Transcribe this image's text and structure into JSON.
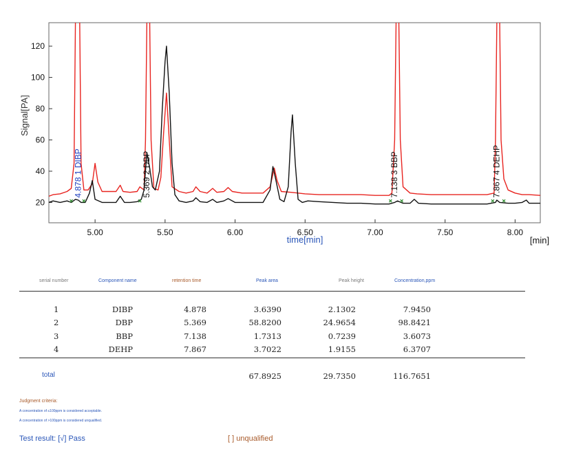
{
  "chart_data": {
    "type": "line",
    "xlabel": "time[min]",
    "ylabel": "Signal[PA]",
    "x_unit": "[min]",
    "xlim": [
      4.67,
      8.18
    ],
    "ylim": [
      7,
      135
    ],
    "x_ticks": [
      "5.00",
      "5.50",
      "6.00",
      "6.50",
      "7.00",
      "7.50",
      "8.00"
    ],
    "y_ticks": [
      "20",
      "40",
      "60",
      "80",
      "100",
      "120"
    ],
    "series": [
      {
        "color": "#e8231f",
        "points": [
          [
            4.67,
            24
          ],
          [
            4.7,
            25
          ],
          [
            4.75,
            25.5
          ],
          [
            4.8,
            27
          ],
          [
            4.83,
            29
          ],
          [
            4.85,
            45
          ],
          [
            4.86,
            136
          ],
          [
            4.89,
            136
          ],
          [
            4.9,
            45
          ],
          [
            4.92,
            28
          ],
          [
            4.95,
            28
          ],
          [
            4.98,
            32
          ],
          [
            5.0,
            45
          ],
          [
            5.02,
            33
          ],
          [
            5.05,
            27
          ],
          [
            5.1,
            27
          ],
          [
            5.15,
            27
          ],
          [
            5.18,
            31
          ],
          [
            5.2,
            27
          ],
          [
            5.25,
            26.5
          ],
          [
            5.3,
            27
          ],
          [
            5.32,
            30
          ],
          [
            5.35,
            28
          ],
          [
            5.36,
            60
          ],
          [
            5.37,
            136
          ],
          [
            5.39,
            136
          ],
          [
            5.4,
            60
          ],
          [
            5.42,
            29
          ],
          [
            5.45,
            28
          ],
          [
            5.47,
            36
          ],
          [
            5.49,
            65
          ],
          [
            5.51,
            90
          ],
          [
            5.53,
            60
          ],
          [
            5.55,
            30
          ],
          [
            5.6,
            27
          ],
          [
            5.65,
            26
          ],
          [
            5.7,
            27
          ],
          [
            5.72,
            30
          ],
          [
            5.75,
            27
          ],
          [
            5.8,
            26
          ],
          [
            5.84,
            29
          ],
          [
            5.87,
            26.5
          ],
          [
            5.92,
            27
          ],
          [
            5.95,
            29.5
          ],
          [
            5.98,
            27
          ],
          [
            6.05,
            26
          ],
          [
            6.15,
            26
          ],
          [
            6.2,
            26
          ],
          [
            6.25,
            30
          ],
          [
            6.28,
            42
          ],
          [
            6.3,
            34
          ],
          [
            6.33,
            27
          ],
          [
            6.4,
            26.5
          ],
          [
            6.45,
            26
          ],
          [
            6.5,
            25.5
          ],
          [
            6.6,
            25
          ],
          [
            6.7,
            25
          ],
          [
            6.8,
            25
          ],
          [
            6.9,
            25
          ],
          [
            7.0,
            24.5
          ],
          [
            7.1,
            24.5
          ],
          [
            7.12,
            26
          ],
          [
            7.14,
            60
          ],
          [
            7.15,
            136
          ],
          [
            7.17,
            136
          ],
          [
            7.18,
            60
          ],
          [
            7.2,
            30
          ],
          [
            7.25,
            26
          ],
          [
            7.3,
            25.5
          ],
          [
            7.4,
            25
          ],
          [
            7.5,
            25
          ],
          [
            7.6,
            25
          ],
          [
            7.7,
            25
          ],
          [
            7.8,
            25
          ],
          [
            7.85,
            26
          ],
          [
            7.86,
            60
          ],
          [
            7.87,
            136
          ],
          [
            7.89,
            136
          ],
          [
            7.9,
            60
          ],
          [
            7.92,
            35
          ],
          [
            7.95,
            28
          ],
          [
            8.0,
            26
          ],
          [
            8.05,
            25
          ],
          [
            8.1,
            25
          ],
          [
            8.18,
            24.5
          ]
        ]
      },
      {
        "color": "#111111",
        "points": [
          [
            4.67,
            20
          ],
          [
            4.7,
            21
          ],
          [
            4.75,
            20
          ],
          [
            4.8,
            21
          ],
          [
            4.83,
            20
          ],
          [
            4.86,
            22
          ],
          [
            4.88,
            21.5
          ],
          [
            4.9,
            20
          ],
          [
            4.93,
            20
          ],
          [
            4.96,
            26
          ],
          [
            4.98,
            34
          ],
          [
            5.0,
            22
          ],
          [
            5.05,
            20
          ],
          [
            5.1,
            20
          ],
          [
            5.15,
            20
          ],
          [
            5.18,
            24
          ],
          [
            5.21,
            20
          ],
          [
            5.25,
            20
          ],
          [
            5.3,
            20.5
          ],
          [
            5.33,
            22
          ],
          [
            5.35,
            28
          ],
          [
            5.37,
            52
          ],
          [
            5.39,
            42
          ],
          [
            5.41,
            30
          ],
          [
            5.43,
            28
          ],
          [
            5.46,
            40
          ],
          [
            5.48,
            80
          ],
          [
            5.5,
            110
          ],
          [
            5.51,
            120
          ],
          [
            5.53,
            90
          ],
          [
            5.55,
            45
          ],
          [
            5.57,
            25
          ],
          [
            5.6,
            21
          ],
          [
            5.65,
            20
          ],
          [
            5.7,
            21
          ],
          [
            5.72,
            23
          ],
          [
            5.75,
            20.5
          ],
          [
            5.8,
            20
          ],
          [
            5.84,
            22
          ],
          [
            5.87,
            20
          ],
          [
            5.92,
            21
          ],
          [
            5.95,
            22.5
          ],
          [
            6.0,
            20
          ],
          [
            6.1,
            20
          ],
          [
            6.2,
            20
          ],
          [
            6.25,
            28
          ],
          [
            6.27,
            43
          ],
          [
            6.29,
            35
          ],
          [
            6.32,
            22
          ],
          [
            6.35,
            20.5
          ],
          [
            6.38,
            30
          ],
          [
            6.4,
            65
          ],
          [
            6.41,
            76
          ],
          [
            6.43,
            45
          ],
          [
            6.45,
            22
          ],
          [
            6.48,
            20
          ],
          [
            6.52,
            21
          ],
          [
            6.6,
            20.5
          ],
          [
            6.7,
            20
          ],
          [
            6.8,
            19.5
          ],
          [
            6.9,
            19.5
          ],
          [
            7.0,
            19
          ],
          [
            7.1,
            19
          ],
          [
            7.14,
            20
          ],
          [
            7.16,
            21
          ],
          [
            7.2,
            19.5
          ],
          [
            7.25,
            19.5
          ],
          [
            7.28,
            22
          ],
          [
            7.31,
            19.5
          ],
          [
            7.4,
            19
          ],
          [
            7.5,
            19
          ],
          [
            7.6,
            19
          ],
          [
            7.7,
            19
          ],
          [
            7.8,
            19
          ],
          [
            7.86,
            20
          ],
          [
            7.87,
            21.5
          ],
          [
            7.89,
            20
          ],
          [
            7.95,
            19.5
          ],
          [
            8.0,
            19.5
          ],
          [
            8.05,
            20
          ],
          [
            8.08,
            21.5
          ],
          [
            8.1,
            19.5
          ],
          [
            8.18,
            19.5
          ]
        ]
      }
    ],
    "peak_labels": [
      {
        "x": 4.878,
        "text": "4.878  1 DIBP",
        "color": "#1d3fbf"
      },
      {
        "x": 5.369,
        "text": "5.369  2  DBP",
        "color": "#111111"
      },
      {
        "x": 7.138,
        "text": "7.138  3  BBP",
        "color": "#111111"
      },
      {
        "x": 7.867,
        "text": "7.867  4  DEHP",
        "color": "#111111"
      }
    ],
    "baseline_markers": [
      4.83,
      4.92,
      5.32,
      7.11,
      7.19,
      7.84,
      7.92
    ]
  },
  "table": {
    "headers": [
      "serial number",
      "Component name",
      "retention time",
      "Peak area",
      "Peak height",
      "Concentration,ppm"
    ],
    "header_colors": [
      "#7a7a7a",
      "#2a56b8",
      "#a85a2a",
      "#2a56b8",
      "#7a7a7a",
      "#2a56b8"
    ],
    "rows": [
      [
        "1",
        "DIBP",
        "4.878",
        "3.6390",
        "2.1302",
        "7.9450"
      ],
      [
        "2",
        "DBP",
        "5.369",
        "58.8200",
        "24.9654",
        "98.8421"
      ],
      [
        "3",
        "BBP",
        "7.138",
        "1.7313",
        "0.7239",
        "3.6073"
      ],
      [
        "4",
        "DEHP",
        "7.867",
        "3.7022",
        "1.9155",
        "6.3707"
      ]
    ],
    "total_label": "total",
    "totals": [
      "67.8925",
      "29.7350",
      "116.7651"
    ]
  },
  "criteria": {
    "title": "Judgment criteria:",
    "line1": "A concentration of ≤100ppm is considered acceptable.",
    "line2": "A concentration of >100ppm is considered unqualified."
  },
  "result": {
    "pass_text": "Test result: [√] Pass",
    "fail_text": "[ ]  unqualified"
  }
}
